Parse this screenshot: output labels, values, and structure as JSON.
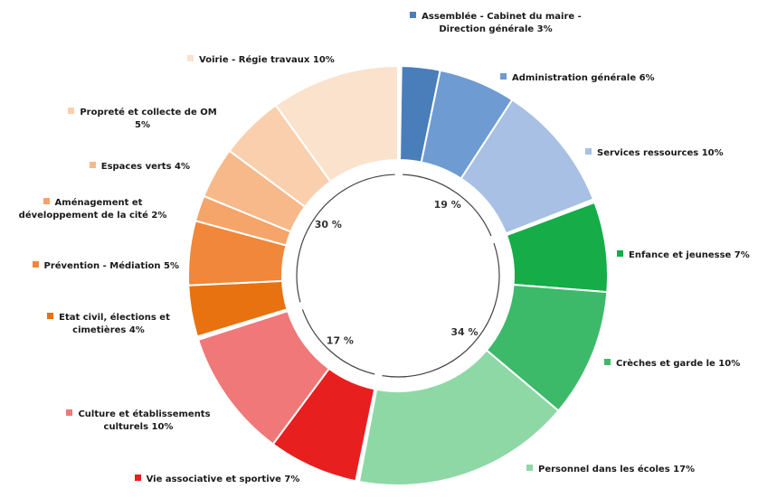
{
  "chart_data": {
    "type": "pie",
    "subtype": "donut",
    "slices": [
      {
        "label": "Assemblée - Cabinet du maire - Direction générale 3%",
        "value": 3,
        "color": "#4a7ebb"
      },
      {
        "label": "Administration générale 6%",
        "value": 6,
        "color": "#6f9bd3"
      },
      {
        "label": "Services ressources 10%",
        "value": 10,
        "color": "#a7c0e3"
      },
      {
        "label": "Enfance et jeunesse 7%",
        "value": 7,
        "color": "#16ac48"
      },
      {
        "label": "Crèches et garde le 10%",
        "value": 10,
        "color": "#3cba6a"
      },
      {
        "label": "Personnel dans les écoles 17%",
        "value": 17,
        "color": "#8ed8a6"
      },
      {
        "label": "Vie associative et sportive 7%",
        "value": 7,
        "color": "#e81f1f"
      },
      {
        "label": "Culture et établissements culturels 10%",
        "value": 10,
        "color": "#f07878"
      },
      {
        "label": "Etat civil, élections et cimetières 4%",
        "value": 4,
        "color": "#e8720f"
      },
      {
        "label": "Prévention - Médiation 5%",
        "value": 5,
        "color": "#f0873a"
      },
      {
        "label": "Aménagement et développement de la cité 2%",
        "value": 2,
        "color": "#f5a46a"
      },
      {
        "label": "Espaces verts 4%",
        "value": 4,
        "color": "#f7b98a"
      },
      {
        "label": "Propreté et collecte de OM 5%",
        "value": 5,
        "color": "#f9cfad"
      },
      {
        "label": "Voirie - Régie travaux 10%",
        "value": 10,
        "color": "#fbe2cc"
      }
    ],
    "groups": [
      {
        "label": "19 %",
        "color": "#4a7ebb"
      },
      {
        "label": "34 %",
        "color": "#16ac48"
      },
      {
        "label": "17 %",
        "color": "#e81f1f"
      },
      {
        "label": "30 %",
        "color": "#e8720f"
      }
    ]
  }
}
